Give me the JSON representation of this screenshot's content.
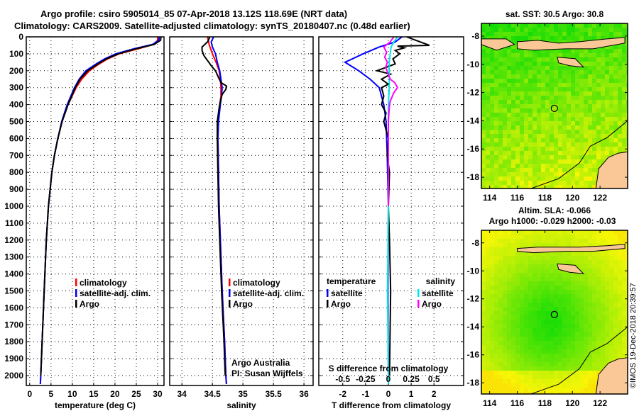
{
  "title": {
    "line1": "Argo profile: csiro 5905014_85 07-Apr-2018 13.12S 118.69E (NRT data)",
    "line2": "Climatology: CARS2009. Satellite-adjusted climatology: synTS_20180407.nc (0.48d earlier)"
  },
  "colors": {
    "climatology": "#ff0000",
    "satellite": "#0000ff",
    "argo": "#000000",
    "sal_satellite": "#00e5e5",
    "sal_argo": "#ff00ff",
    "land": "#f9c896"
  },
  "chart_data": [
    {
      "type": "line",
      "name": "temperature",
      "xlabel": "temperature (deg C)",
      "ylabel": "depth",
      "xlim": [
        -0.8,
        31.5
      ],
      "ylim": [
        2050,
        0
      ],
      "xticks": [
        0,
        5,
        10,
        15,
        20,
        25,
        30
      ],
      "xtick_labels": [
        "0",
        "5",
        "10",
        "15",
        "20",
        "25",
        "30"
      ],
      "yticks": [
        0,
        100,
        200,
        300,
        400,
        500,
        600,
        700,
        800,
        900,
        1000,
        1100,
        1200,
        1300,
        1400,
        1500,
        1600,
        1700,
        1800,
        1900,
        2000
      ],
      "ytick_labels": [
        "0",
        "100",
        "200",
        "300",
        "400",
        "500",
        "600",
        "700",
        "800",
        "900",
        "1000",
        "1100",
        "1200",
        "1300",
        "1400",
        "1500",
        "1600",
        "1700",
        "1800",
        "1900",
        "2000"
      ],
      "legend": [
        "climatology",
        "satellite-adj. clim.",
        "Argo"
      ],
      "series": [
        {
          "name": "climatology",
          "color": "#ff0000",
          "depth": [
            0,
            20,
            45,
            70,
            100,
            130,
            160,
            200,
            250,
            300,
            400,
            500,
            600,
            700,
            800,
            1000,
            1200,
            1500,
            1750,
            2000,
            2050
          ],
          "values": [
            30.0,
            30.0,
            29.0,
            25.5,
            21.0,
            18.3,
            16.3,
            14.0,
            12.2,
            10.9,
            9.0,
            7.6,
            6.6,
            5.8,
            5.2,
            4.4,
            3.9,
            3.4,
            3.0,
            2.6,
            2.5
          ]
        },
        {
          "name": "satellite-adj. clim.",
          "color": "#0000ff",
          "depth": [
            0,
            20,
            45,
            70,
            100,
            130,
            160,
            200,
            250,
            300,
            400,
            500,
            600,
            700,
            800,
            1000,
            1200,
            1500,
            1750,
            2000,
            2050
          ],
          "values": [
            30.4,
            30.3,
            28.8,
            24.5,
            20.2,
            17.6,
            15.6,
            13.2,
            11.6,
            10.5,
            8.8,
            7.5,
            6.6,
            5.8,
            5.2,
            4.4,
            3.9,
            3.4,
            3.0,
            2.6,
            2.5
          ]
        },
        {
          "name": "Argo",
          "color": "#000000",
          "depth": [
            0,
            20,
            45,
            70,
            100,
            130,
            160,
            200,
            250,
            300,
            400,
            500,
            600,
            700,
            800,
            1000,
            1200,
            1500,
            1750,
            2000
          ],
          "values": [
            30.8,
            30.7,
            29.2,
            25.0,
            20.8,
            18.0,
            16.0,
            13.6,
            11.8,
            10.7,
            9.0,
            7.6,
            6.6,
            5.8,
            5.2,
            4.4,
            3.9,
            3.4,
            3.0,
            2.6
          ]
        }
      ]
    },
    {
      "type": "line",
      "name": "salinity",
      "xlabel": "salinity",
      "xlim": [
        33.8,
        36.15
      ],
      "ylim": [
        2050,
        0
      ],
      "xticks": [
        34,
        34.5,
        35,
        35.5,
        36
      ],
      "xtick_labels": [
        "34",
        "34.5",
        "35",
        "35.5",
        "36"
      ],
      "legend": [
        "climatology",
        "satellite-adj. clim.",
        "Argo"
      ],
      "annotations": [
        "Argo Australia",
        "PI: Susan Wijffels"
      ],
      "series": [
        {
          "name": "climatology",
          "color": "#ff0000",
          "depth": [
            0,
            50,
            100,
            150,
            200,
            250,
            300,
            350,
            400,
            500,
            600,
            800,
            1000,
            1200,
            1500,
            1800,
            2000,
            2050
          ],
          "values": [
            34.42,
            34.45,
            34.5,
            34.56,
            34.61,
            34.63,
            34.64,
            34.64,
            34.62,
            34.6,
            34.59,
            34.6,
            34.61,
            34.63,
            34.66,
            34.7,
            34.72,
            34.73
          ]
        },
        {
          "name": "satellite-adj. clim.",
          "color": "#0000ff",
          "depth": [
            0,
            30,
            60,
            100,
            150,
            200,
            250,
            300,
            350,
            400,
            500,
            600,
            800,
            1000,
            1200,
            1500,
            1800,
            2000,
            2050
          ],
          "values": [
            34.52,
            34.48,
            34.5,
            34.55,
            34.58,
            34.62,
            34.64,
            34.66,
            34.65,
            34.63,
            34.6,
            34.59,
            34.6,
            34.61,
            34.63,
            34.66,
            34.7,
            34.72,
            34.73
          ]
        },
        {
          "name": "Argo",
          "color": "#000000",
          "depth": [
            0,
            30,
            60,
            80,
            110,
            140,
            170,
            200,
            240,
            270,
            290,
            310,
            340,
            380,
            420,
            500,
            600,
            800,
            1000,
            1200,
            1500,
            1800,
            2000
          ],
          "values": [
            34.46,
            34.42,
            34.33,
            34.33,
            34.36,
            34.42,
            34.48,
            34.55,
            34.6,
            34.64,
            34.73,
            34.72,
            34.66,
            34.63,
            34.61,
            34.58,
            34.58,
            34.59,
            34.6,
            34.62,
            34.65,
            34.69,
            34.71
          ]
        }
      ]
    },
    {
      "type": "line",
      "name": "difference",
      "xlabel": "T difference from climatology",
      "xlabel2": "S difference from climatology",
      "xlim": [
        -3.05,
        3.3
      ],
      "ylim": [
        2050,
        0
      ],
      "xticks": [
        -2,
        -1,
        0,
        1,
        2
      ],
      "xtick_labels": [
        "-2",
        "-1",
        "0",
        "1",
        "2"
      ],
      "s_ticks": [
        -0.5,
        -0.25,
        0,
        0.25,
        0.5
      ],
      "s_tick_labels": [
        "-0.5",
        "-0.25",
        "0",
        "0.25",
        "0.5"
      ],
      "legend": {
        "temperature_title": "temperature",
        "salinity_title": "salinity",
        "items": [
          "satellite",
          "Argo",
          "satellite",
          "Argo"
        ]
      },
      "series": [
        {
          "name": "T satellite",
          "color": "#0000ff",
          "depth": [
            0,
            30,
            60,
            100,
            150,
            200,
            250,
            300,
            400,
            500,
            700,
            1000,
            1500,
            2000,
            2050
          ],
          "values": [
            0.6,
            0.3,
            -0.4,
            -1.1,
            -1.9,
            -1.3,
            -0.8,
            -0.4,
            -0.2,
            -0.1,
            -0.05,
            0,
            -0.02,
            0,
            0
          ]
        },
        {
          "name": "T Argo",
          "color": "#000000",
          "depth": [
            0,
            20,
            50,
            55,
            65,
            80,
            100,
            130,
            160,
            180,
            200,
            220,
            250,
            280,
            300,
            350,
            400,
            450,
            500,
            600,
            700,
            800,
            1000,
            1200,
            1500,
            2000
          ],
          "values": [
            0.8,
            1.2,
            1.8,
            0.4,
            0.7,
            0.3,
            0.5,
            0.2,
            0.3,
            -0.1,
            -0.5,
            0.1,
            -0.3,
            0.0,
            -0.3,
            -0.2,
            -0.3,
            -0.1,
            -0.2,
            0.0,
            -0.05,
            0.05,
            0.0,
            0.05,
            0.1,
            0.05
          ]
        },
        {
          "name": "S satellite",
          "color": "#00e5e5",
          "depth": [
            0,
            30,
            60,
            100,
            150,
            200,
            300,
            400,
            500,
            700,
            1000,
            1500,
            2000,
            2050
          ],
          "values": [
            0.1,
            0.06,
            0.03,
            0.02,
            0.01,
            0.01,
            0.01,
            0.0,
            0.0,
            0.0,
            0.0,
            -0.01,
            0.0,
            0.0
          ]
        },
        {
          "name": "S Argo",
          "color": "#ff00ff",
          "depth": [
            0,
            30,
            60,
            90,
            120,
            150,
            180,
            220,
            250,
            270,
            300,
            330,
            380,
            420,
            500,
            700,
            1000
          ],
          "values": [
            0.06,
            0.02,
            -0.05,
            -0.02,
            -0.04,
            -0.01,
            -0.03,
            0.0,
            0.02,
            0.07,
            0.1,
            0.06,
            0.02,
            0.01,
            0.0,
            0.0,
            0.0
          ]
        }
      ]
    },
    {
      "type": "heatmap",
      "name": "sst-map",
      "title": "sat. SST: 30.5 Argo: 30.8",
      "xlim": [
        113.4,
        124.0
      ],
      "ylim": [
        -18.8,
        -7.1
      ],
      "xtick_labels": [
        "114",
        "116",
        "118",
        "120",
        "122"
      ],
      "xticks": [
        114,
        116,
        118,
        120,
        122
      ],
      "yticks": [
        -8,
        -10,
        -12,
        -14,
        -16,
        -18
      ],
      "ytick_labels": [
        "-8",
        "-10",
        "-12",
        "-14",
        "-16",
        "-18"
      ],
      "marker": {
        "lon": 118.69,
        "lat": -13.12
      }
    },
    {
      "type": "heatmap",
      "name": "sla-map",
      "title": "Altim. SLA: -0.066",
      "subtitle": "Argo h1000: -0.029 h2000: -0.03",
      "xlim": [
        113.4,
        124.0
      ],
      "ylim": [
        -18.8,
        -7.1
      ],
      "xtick_labels": [
        "114",
        "116",
        "118",
        "120",
        "122"
      ],
      "xticks": [
        114,
        116,
        118,
        120,
        122
      ],
      "yticks": [
        -8,
        -10,
        -12,
        -14,
        -16,
        -18
      ],
      "ytick_labels": [
        "-8",
        "-10",
        "-12",
        "-14",
        "-16",
        "-18"
      ],
      "marker": {
        "lon": 118.69,
        "lat": -13.12
      }
    }
  ],
  "credit": "©IMOS 19-Dec-2018 20:39:57"
}
